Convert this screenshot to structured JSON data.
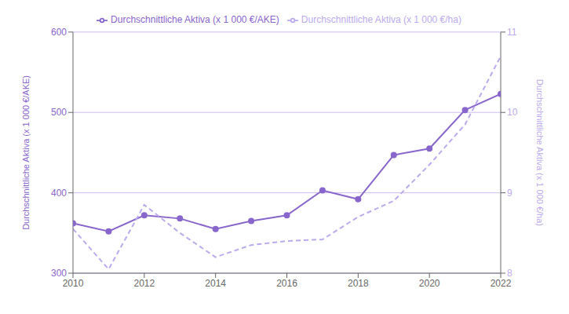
{
  "chart_data": {
    "type": "line",
    "x": [
      2010,
      2011,
      2012,
      2013,
      2014,
      2015,
      2016,
      2017,
      2018,
      2019,
      2020,
      2021,
      2022
    ],
    "xlim": [
      2010,
      2022
    ],
    "xticks": [
      2010,
      2012,
      2014,
      2016,
      2018,
      2020,
      2022
    ],
    "ylabel": "Durchschnittliche Aktiva (x 1 000 €/AKE)",
    "y2label": "Durchschnittliche Aktiva (x 1 000 €/ha)",
    "ylim": [
      300,
      600
    ],
    "yticks": [
      300,
      400,
      500,
      600
    ],
    "y2lim": [
      8,
      11
    ],
    "y2ticks": [
      8,
      9,
      10,
      11
    ],
    "grid": true,
    "legend": "top",
    "series": [
      {
        "name": "Durchschnittliche Aktiva (x 1 000 €/AKE)",
        "color": "#8866cc",
        "values": [
          362,
          352,
          372,
          368,
          355,
          365,
          372,
          403,
          392,
          447,
          455,
          503,
          523
        ],
        "marker": "circle",
        "line_style": "solid"
      },
      {
        "name": "Durchschnittliche Aktiva (x 1 000 €/ha)",
        "color": "#bbaaee",
        "values": [
          8.55,
          8.05,
          8.85,
          8.5,
          8.2,
          8.35,
          8.4,
          8.42,
          8.7,
          8.9,
          9.35,
          9.85,
          10.7
        ],
        "axis": "y2",
        "line_style": "dashed"
      }
    ]
  }
}
